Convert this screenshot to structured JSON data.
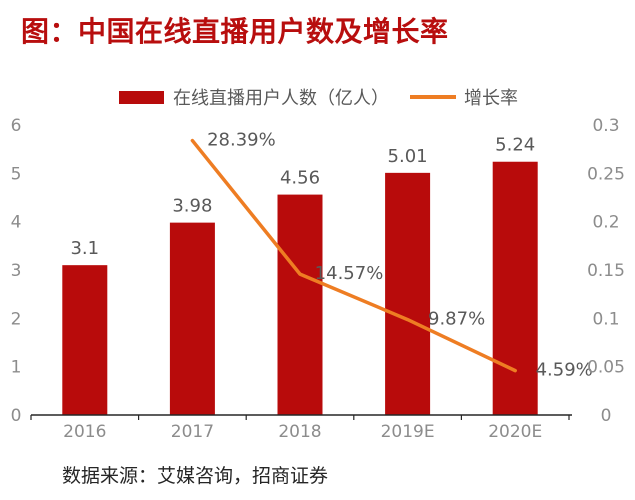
{
  "title": "图：中国在线直播用户数及增长率",
  "legend": [
    {
      "label": "在线直播用户人数（亿人）",
      "type": "bar",
      "color": "#B80B0B"
    },
    {
      "label": "增长率",
      "type": "line",
      "color": "#EE7D23"
    }
  ],
  "source": "数据来源：艾媒咨询，招商证券",
  "colors": {
    "bar": "#B80B0B",
    "line": "#EE7D23",
    "axis_line": "#262626",
    "axis_tick_text": "#8C8C8C",
    "data_label_text": "#595959"
  },
  "chart_data": {
    "type": "bar+line combo",
    "title": "图：中国在线直播用户数及增长率",
    "categories": [
      "2016",
      "2017",
      "2018",
      "2019E",
      "2020E"
    ],
    "series": [
      {
        "name": "在线直播用户人数（亿人）",
        "type": "bar",
        "axis": "left",
        "values": [
          3.1,
          3.98,
          4.56,
          5.01,
          5.24
        ],
        "labels": [
          "3.1",
          "3.98",
          "4.56",
          "5.01",
          "5.24"
        ],
        "color": "#B80B0B"
      },
      {
        "name": "增长率",
        "type": "line",
        "axis": "right",
        "values": [
          null,
          0.2839,
          0.1457,
          0.0987,
          0.0459
        ],
        "labels": [
          null,
          "28.39%",
          "14.57%",
          "9.87%",
          "4.59%"
        ],
        "color": "#EE7D23"
      }
    ],
    "left_axis": {
      "range": [
        0,
        6
      ],
      "ticks": [
        "0",
        "1",
        "2",
        "3",
        "4",
        "5",
        "6"
      ]
    },
    "right_axis": {
      "range": [
        0,
        0.3
      ],
      "ticks": [
        "0",
        "0.05",
        "0.1",
        "0.15",
        "0.2",
        "0.25",
        "0.3"
      ]
    },
    "grid": false,
    "legend_position": "top"
  }
}
